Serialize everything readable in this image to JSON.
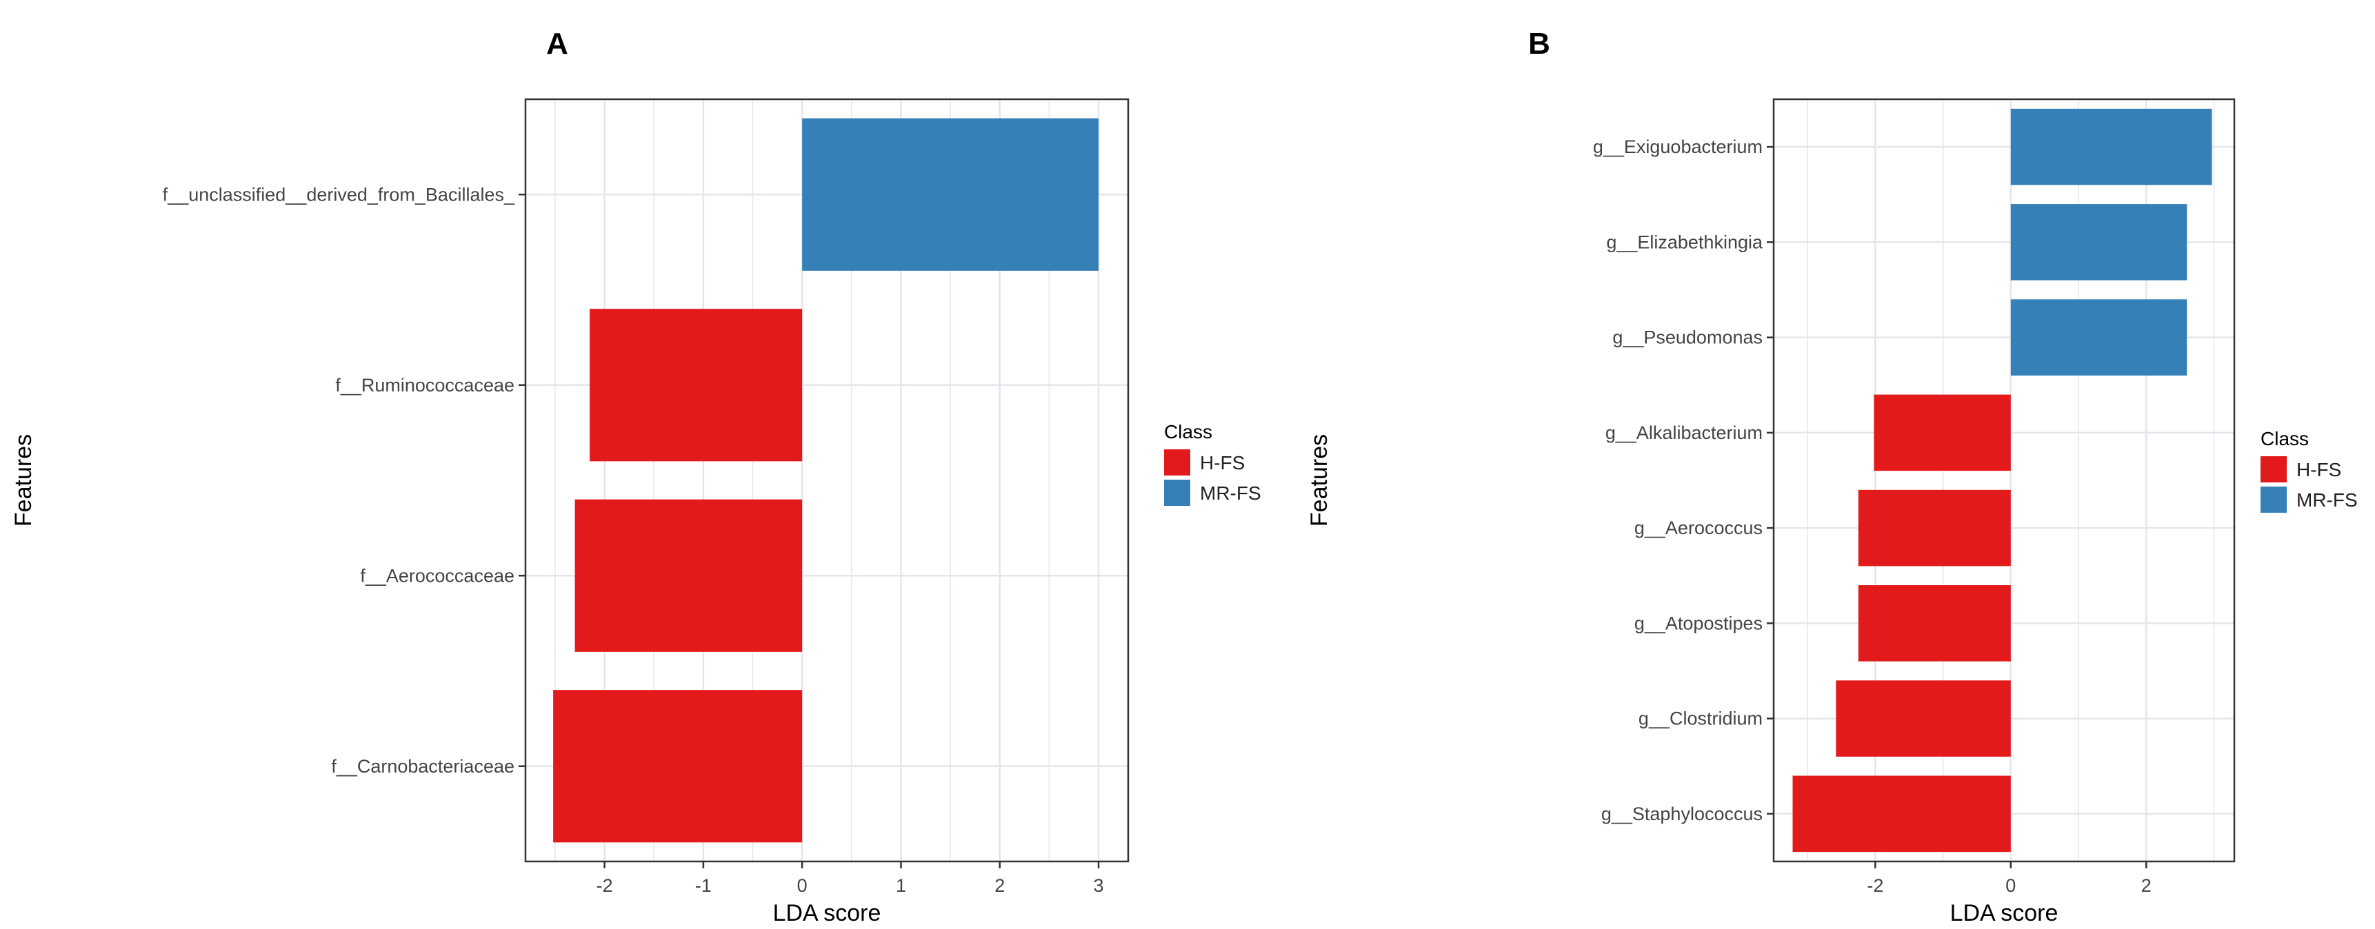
{
  "colors": {
    "H-FS": "#e31a1c",
    "MR-FS": "#3680b8",
    "grid": "#e3e6ec",
    "frame": "#333333"
  },
  "chart_data": [
    {
      "panel": "A",
      "type": "bar",
      "orientation": "horizontal",
      "xlabel": "LDA score",
      "ylabel": "Features",
      "xlim": [
        -2.8,
        3.3
      ],
      "xticks": [
        -2,
        -1,
        0,
        1,
        2,
        3
      ],
      "grid": true,
      "legend": {
        "title": "Class",
        "position": "right",
        "entries": [
          "H-FS",
          "MR-FS"
        ]
      },
      "categories": [
        "f__unclassified__derived_from_Bacillales_",
        "f__Ruminococcaceae",
        "f__Aerococcaceae",
        "f__Carnobacteriaceae"
      ],
      "values": [
        3.0,
        -2.15,
        -2.3,
        -2.52
      ],
      "classes": [
        "MR-FS",
        "H-FS",
        "H-FS",
        "H-FS"
      ]
    },
    {
      "panel": "B",
      "type": "bar",
      "orientation": "horizontal",
      "xlabel": "LDA score",
      "ylabel": "Features",
      "xlim": [
        -3.5,
        3.3
      ],
      "xticks": [
        -2,
        0,
        2
      ],
      "grid": true,
      "legend": {
        "title": "Class",
        "position": "right",
        "entries": [
          "H-FS",
          "MR-FS"
        ]
      },
      "categories": [
        "g__Exiguobacterium",
        "g__Elizabethkingia",
        "g__Pseudomonas",
        "g__Alkalibacterium",
        "g__Aerococcus",
        "g__Atopostipes",
        "g__Clostridium",
        "g__Staphylococcus"
      ],
      "values": [
        2.97,
        2.6,
        2.6,
        -2.02,
        -2.25,
        -2.25,
        -2.58,
        -3.22
      ],
      "classes": [
        "MR-FS",
        "MR-FS",
        "MR-FS",
        "H-FS",
        "H-FS",
        "H-FS",
        "H-FS",
        "H-FS"
      ]
    }
  ]
}
